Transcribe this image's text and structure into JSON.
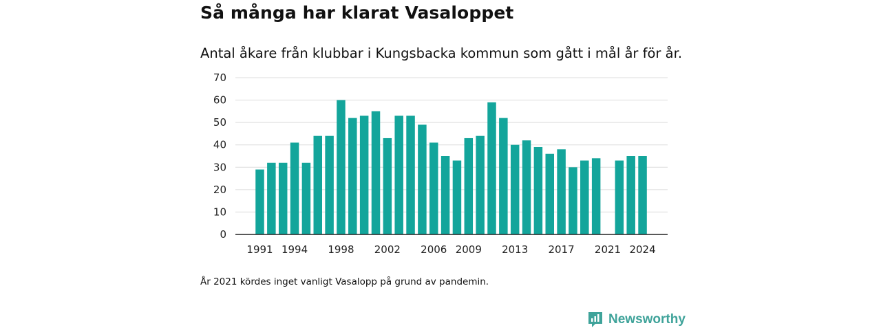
{
  "header": {
    "title": "Så många har klarat Vasaloppet",
    "subtitle": "Antal åkare från klubbar i Kungsbacka kommun som gått i mål år för år."
  },
  "chart_data": {
    "type": "bar",
    "categories": [
      "1991",
      "1992",
      "1993",
      "1994",
      "1995",
      "1996",
      "1997",
      "1998",
      "1999",
      "2000",
      "2001",
      "2002",
      "2003",
      "2004",
      "2005",
      "2006",
      "2007",
      "2008",
      "2009",
      "2010",
      "2011",
      "2012",
      "2013",
      "2014",
      "2015",
      "2016",
      "2017",
      "2018",
      "2019",
      "2020",
      "2021",
      "2022",
      "2023",
      "2024"
    ],
    "values": [
      29,
      32,
      32,
      41,
      32,
      44,
      44,
      60,
      52,
      53,
      55,
      43,
      53,
      53,
      49,
      41,
      35,
      33,
      43,
      44,
      59,
      52,
      40,
      42,
      39,
      36,
      38,
      30,
      33,
      34,
      null,
      33,
      35,
      35
    ],
    "x_tick_labels": [
      "1991",
      "1994",
      "1998",
      "2002",
      "2006",
      "2009",
      "2013",
      "2017",
      "2021",
      "2024"
    ],
    "y_ticks": [
      0,
      10,
      20,
      30,
      40,
      50,
      60,
      70
    ],
    "ylim": [
      0,
      70
    ],
    "grid": true,
    "bar_color": "#13a59b",
    "xlabel": "",
    "ylabel": ""
  },
  "footnote": "År 2021 kördes inget vanligt Vasalopp på grund av pandemin.",
  "brand": {
    "name": "Newsworthy",
    "icon": "newsworthy-logo-icon",
    "color": "#3fa39a"
  }
}
